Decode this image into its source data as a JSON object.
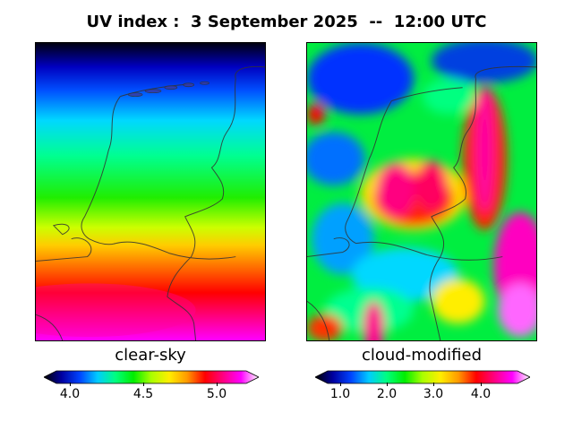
{
  "title": "UV index :  3 September 2025  --  12:00 UTC",
  "panels": [
    {
      "label": "clear-sky",
      "colorbar_ticks": [
        "4.0",
        "4.5",
        "5.0"
      ]
    },
    {
      "label": "cloud-modified",
      "colorbar_ticks": [
        "1.0",
        "2.0",
        "3.0",
        "4.0"
      ]
    }
  ],
  "colormap": [
    "#000000",
    "#0000a0",
    "#0044ff",
    "#00ccff",
    "#00ff80",
    "#00ee00",
    "#aaff00",
    "#ffee00",
    "#ff9900",
    "#ff0000",
    "#ff0080",
    "#ff00ff",
    "#ffffff"
  ],
  "coastline_color": "#333333"
}
